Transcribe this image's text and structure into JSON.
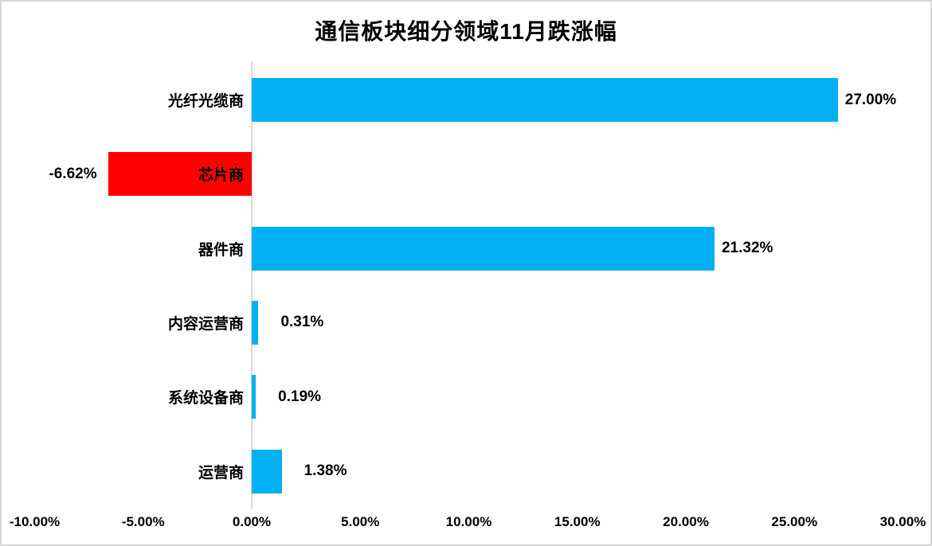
{
  "chart_data": {
    "type": "bar",
    "orientation": "horizontal",
    "title": "通信板块细分领域11月跌涨幅",
    "categories": [
      "光纤光缆商",
      "芯片商",
      "器件商",
      "内容运营商",
      "系统设备商",
      "运营商"
    ],
    "values": [
      27.0,
      -6.62,
      21.32,
      0.31,
      0.19,
      1.38
    ],
    "value_labels": [
      "27.00%",
      "-6.62%",
      "21.32%",
      "0.31%",
      "0.19%",
      "1.38%"
    ],
    "bar_colors": [
      "#00B0F0",
      "#FF0000",
      "#00B0F0",
      "#00B0F0",
      "#00B0F0",
      "#00B0F0"
    ],
    "x_ticks": [
      "-10.00%",
      "-5.00%",
      "0.00%",
      "5.00%",
      "10.00%",
      "15.00%",
      "20.00%",
      "25.00%",
      "30.00%"
    ],
    "x_tick_values": [
      -10,
      -5,
      0,
      5,
      10,
      15,
      20,
      25,
      30
    ],
    "xlim": [
      -11.5,
      31.4
    ],
    "grid": false,
    "legend": false,
    "colors": {
      "positive_bar": "#00B0F0",
      "negative_bar": "#FF0000",
      "axis_line": "#D9D9D9",
      "chart_border": "#D6D6D6",
      "text": "#000000"
    }
  }
}
